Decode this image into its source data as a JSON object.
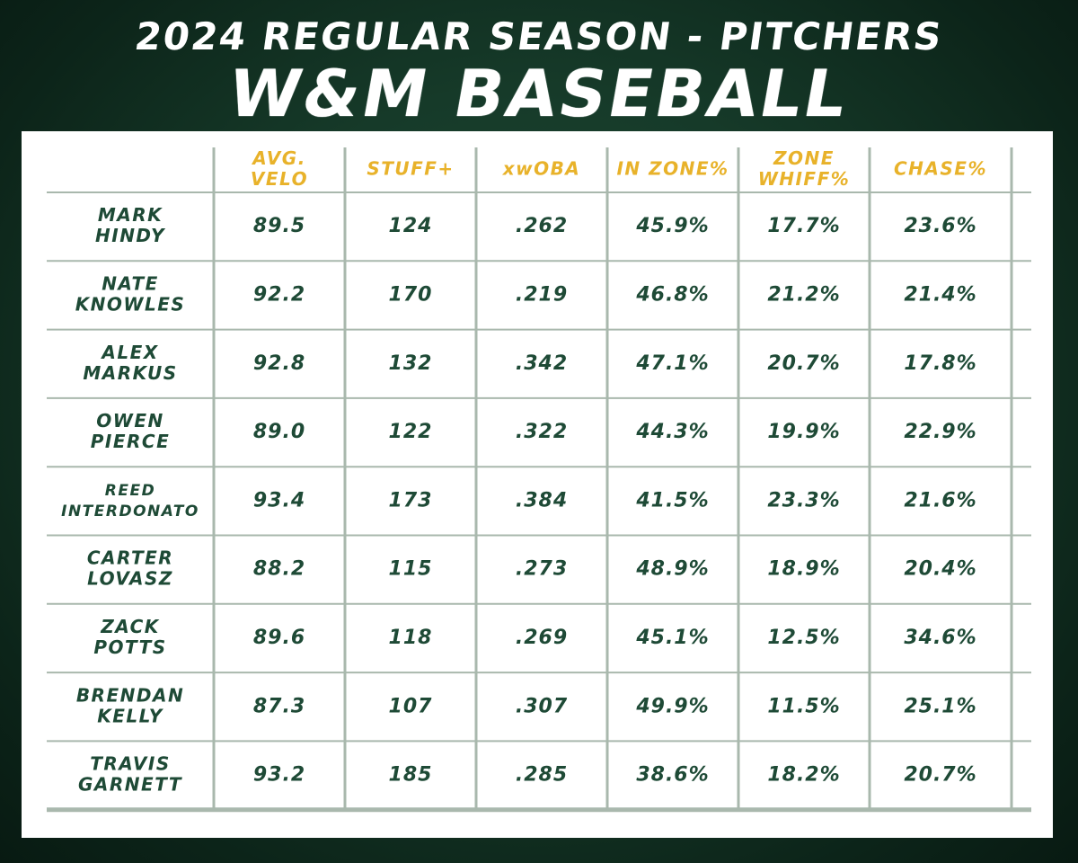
{
  "header": {
    "subtitle": "2024 REGULAR SEASON - PITCHERS",
    "title": "W&M BASEBALL"
  },
  "colors": {
    "header_text": "#e8b22a",
    "cell_text": "#1e4a36",
    "grid": "#a9b8ad"
  },
  "chart_data": {
    "type": "table",
    "columns": [
      [
        "AVG.",
        "VELO"
      ],
      [
        "STUFF+"
      ],
      [
        "xwOBA"
      ],
      [
        "IN ZONE%"
      ],
      [
        "ZONE",
        "WHIFF%"
      ],
      [
        "CHASE%"
      ]
    ],
    "rows": [
      {
        "name": [
          "MARK",
          "HINDY"
        ],
        "values": [
          "89.5",
          "124",
          ".262",
          "45.9%",
          "17.7%",
          "23.6%"
        ]
      },
      {
        "name": [
          "NATE",
          "KNOWLES"
        ],
        "values": [
          "92.2",
          "170",
          ".219",
          "46.8%",
          "21.2%",
          "21.4%"
        ]
      },
      {
        "name": [
          "ALEX",
          "MARKUS"
        ],
        "values": [
          "92.8",
          "132",
          ".342",
          "47.1%",
          "20.7%",
          "17.8%"
        ]
      },
      {
        "name": [
          "OWEN",
          "PIERCE"
        ],
        "values": [
          "89.0",
          "122",
          ".322",
          "44.3%",
          "19.9%",
          "22.9%"
        ]
      },
      {
        "name": [
          "REED",
          "INTERDONATO"
        ],
        "values": [
          "93.4",
          "173",
          ".384",
          "41.5%",
          "23.3%",
          "21.6%"
        ]
      },
      {
        "name": [
          "CARTER",
          "LOVASZ"
        ],
        "values": [
          "88.2",
          "115",
          ".273",
          "48.9%",
          "18.9%",
          "20.4%"
        ]
      },
      {
        "name": [
          "ZACK",
          "POTTS"
        ],
        "values": [
          "89.6",
          "118",
          ".269",
          "45.1%",
          "12.5%",
          "34.6%"
        ]
      },
      {
        "name": [
          "BRENDAN",
          "KELLY"
        ],
        "values": [
          "87.3",
          "107",
          ".307",
          "49.9%",
          "11.5%",
          "25.1%"
        ]
      },
      {
        "name": [
          "TRAVIS",
          "GARNETT"
        ],
        "values": [
          "93.2",
          "185",
          ".285",
          "38.6%",
          "18.2%",
          "20.7%"
        ]
      }
    ]
  }
}
